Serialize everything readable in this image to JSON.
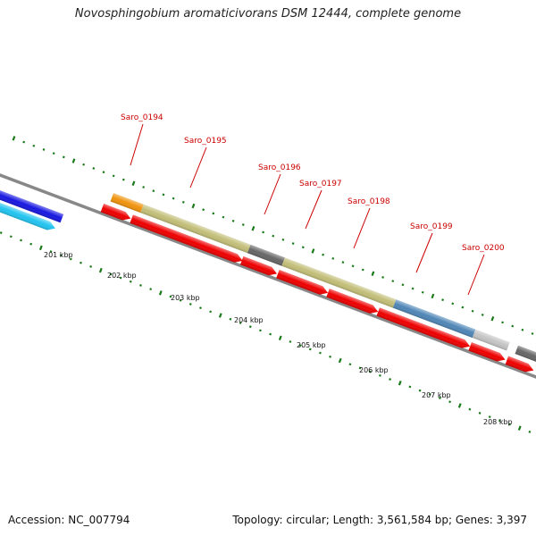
{
  "title": "Novosphingobium aromaticivorans DSM 12444, complete genome",
  "footer": {
    "accession": "Accession: NC_007794",
    "topology": "Topology: circular; Length: 3,561,584 bp; Genes: 3,397"
  },
  "scale_labels": [
    "201 kbp",
    "202 kbp",
    "203 kbp",
    "204 kbp",
    "205 kbp",
    "206 kbp",
    "207 kbp",
    "208 kbp"
  ],
  "gene_labels": [
    "Saro_0194",
    "Saro_0195",
    "Saro_0196",
    "Saro_0197",
    "Saro_0198",
    "Saro_0199",
    "Saro_0200"
  ],
  "colors": {
    "backbone": "#888888",
    "cds": "#ee0000",
    "label": "#cc0000",
    "tick": "#1a7a1a",
    "orange": "#f0930e",
    "khaki": "#c2be78",
    "steelblue": "#4f86b6",
    "darkgray": "#666666",
    "lightgray": "#c4c4c4",
    "blue": "#1818e0",
    "cyan": "#22c4f0"
  }
}
